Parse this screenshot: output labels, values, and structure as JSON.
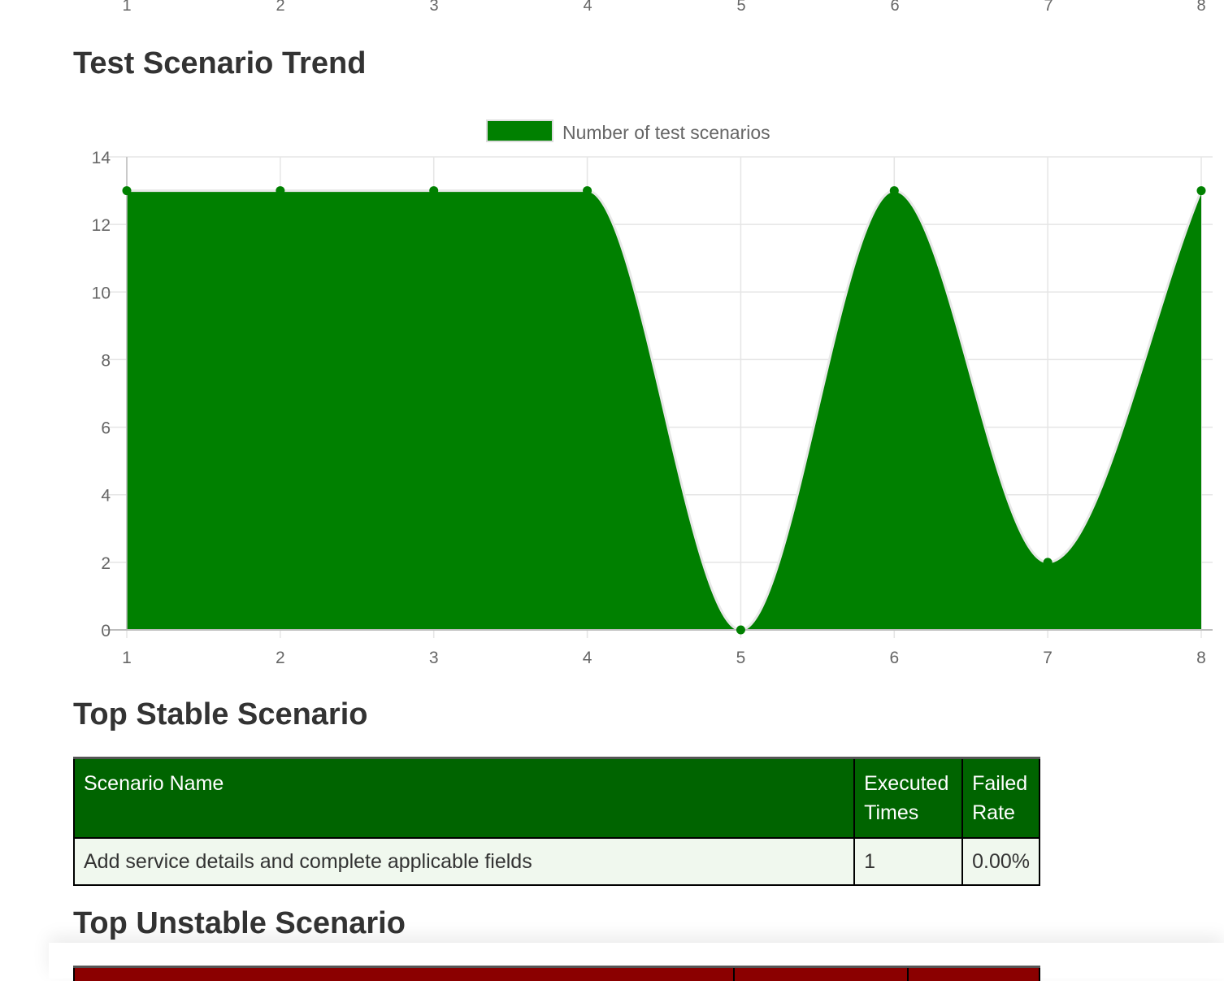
{
  "top_axis_ticks": [
    "1",
    "2",
    "3",
    "4",
    "5",
    "6",
    "7",
    "8"
  ],
  "trend": {
    "title": "Test Scenario Trend"
  },
  "chart_data": {
    "type": "area",
    "x": [
      1,
      2,
      3,
      4,
      5,
      6,
      7,
      8
    ],
    "series": [
      {
        "name": "Number of test scenarios",
        "values": [
          13,
          13,
          13,
          13,
          0,
          13,
          2,
          13
        ],
        "color": "#008000"
      }
    ],
    "ylim": [
      0,
      14
    ],
    "yticks": [
      0,
      2,
      4,
      6,
      8,
      10,
      12,
      14
    ],
    "xticks": [
      "1",
      "2",
      "3",
      "4",
      "5",
      "6",
      "7",
      "8"
    ],
    "grid": true,
    "legend": "top-center",
    "smooth": true
  },
  "stable": {
    "title": "Top Stable Scenario",
    "headers": [
      "Scenario Name",
      "Executed Times",
      "Failed Rate"
    ],
    "rows": [
      [
        "Add service details and complete applicable fields",
        "1",
        "0.00%"
      ]
    ],
    "header_color": "#006400"
  },
  "unstable": {
    "title": "Top Unstable Scenario",
    "header_color": "#8b0000"
  }
}
